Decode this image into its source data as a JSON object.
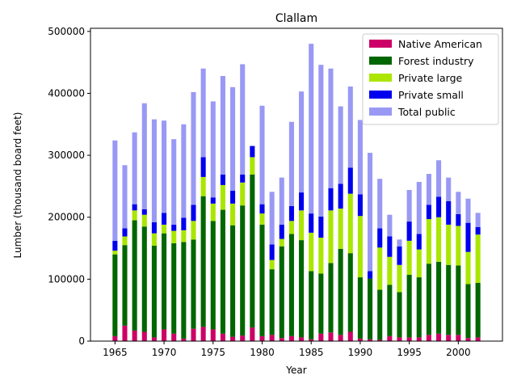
{
  "chart_data": {
    "type": "bar",
    "stacked": true,
    "title": "Clallam",
    "xlabel": "Year",
    "ylabel": "Lumber (thousand board feet)",
    "xlim": [
      1962.5,
      2004.5
    ],
    "ylim": [
      0,
      505000
    ],
    "xticks": [
      1965,
      1970,
      1975,
      1980,
      1985,
      1990,
      1995,
      2000
    ],
    "yticks": [
      0,
      100000,
      200000,
      300000,
      400000,
      500000
    ],
    "grid": false,
    "legend_position": "top-right",
    "x": [
      1965,
      1966,
      1967,
      1968,
      1969,
      1970,
      1971,
      1972,
      1973,
      1974,
      1975,
      1976,
      1977,
      1978,
      1979,
      1980,
      1981,
      1982,
      1983,
      1984,
      1985,
      1986,
      1987,
      1988,
      1989,
      1990,
      1991,
      1992,
      1993,
      1994,
      1995,
      1996,
      1997,
      1998,
      1999,
      2000,
      2001,
      2002
    ],
    "series": [
      {
        "name": "Native American",
        "color": "#cc0066",
        "values": [
          8000,
          25000,
          17000,
          15000,
          6000,
          19000,
          12000,
          4000,
          20000,
          23000,
          19000,
          12000,
          7000,
          9000,
          22000,
          8000,
          10000,
          5000,
          8000,
          6000,
          3000,
          12000,
          14000,
          10000,
          15000,
          4000,
          3000,
          2000,
          8000,
          6000,
          6000,
          6000,
          10000,
          12000,
          10000,
          10000,
          5000,
          6000
        ]
      },
      {
        "name": "Forest industry",
        "color": "#006600",
        "values": [
          132000,
          130000,
          178000,
          170000,
          148000,
          155000,
          146000,
          156000,
          144000,
          211000,
          175000,
          200000,
          180000,
          210000,
          247000,
          180000,
          106000,
          148000,
          165000,
          157000,
          110000,
          97000,
          112000,
          139000,
          127000,
          99000,
          98000,
          81000,
          83000,
          73000,
          101000,
          97000,
          115000,
          116000,
          113000,
          112000,
          87000,
          88000
        ]
      },
      {
        "name": "Private large",
        "color": "#aae600",
        "values": [
          6000,
          14000,
          16000,
          19000,
          20000,
          14000,
          20000,
          19000,
          30000,
          31000,
          28000,
          40000,
          35000,
          37000,
          28000,
          18000,
          15000,
          12000,
          21000,
          48000,
          62000,
          58000,
          85000,
          65000,
          96000,
          99000,
          0,
          68000,
          45000,
          44000,
          55000,
          45000,
          72000,
          72000,
          65000,
          64000,
          52000,
          78000
        ]
      },
      {
        "name": "Private small",
        "color": "#0000ee",
        "values": [
          16000,
          13000,
          10000,
          9000,
          18000,
          19000,
          10000,
          20000,
          26000,
          32000,
          10000,
          17000,
          21000,
          13000,
          18000,
          15000,
          25000,
          23000,
          24000,
          29000,
          31000,
          34000,
          36000,
          40000,
          42000,
          35000,
          12000,
          31000,
          33000,
          30000,
          31000,
          25000,
          23000,
          33000,
          38000,
          19000,
          47000,
          12000
        ]
      },
      {
        "name": "Total public",
        "color": "#9999f5",
        "values": [
          162000,
          102000,
          116000,
          171000,
          166000,
          149000,
          138000,
          151000,
          182000,
          143000,
          155000,
          159000,
          167000,
          178000,
          0,
          159000,
          85000,
          76000,
          136000,
          163000,
          274000,
          245000,
          193000,
          125000,
          131000,
          120000,
          191000,
          80000,
          35000,
          11000,
          51000,
          84000,
          50000,
          59000,
          38000,
          36000,
          39000,
          23000
        ]
      }
    ]
  }
}
